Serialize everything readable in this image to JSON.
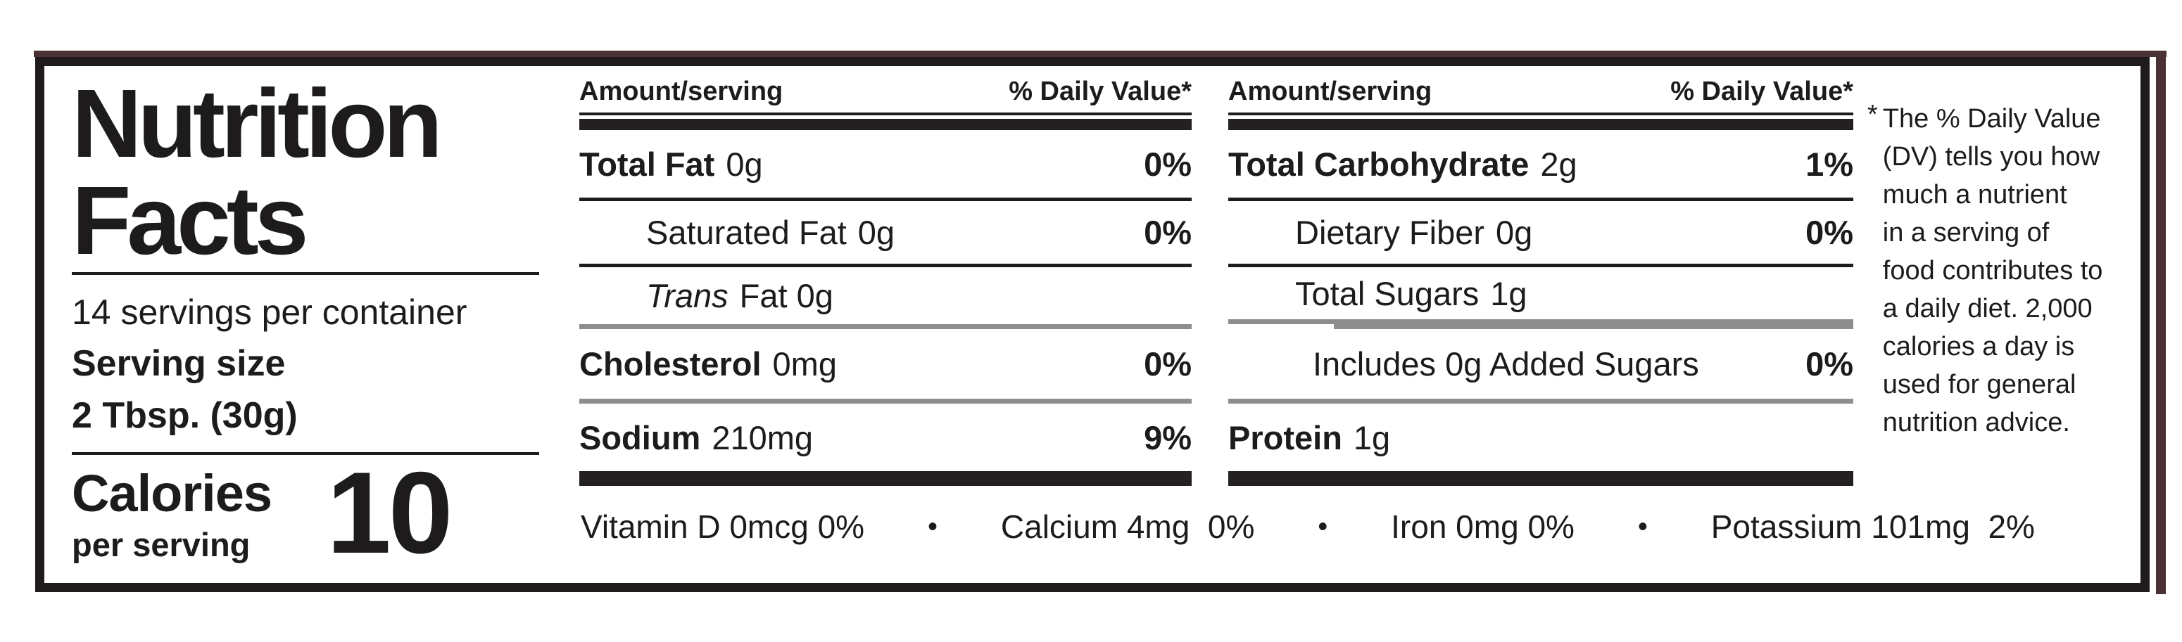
{
  "label": {
    "title": {
      "line1": "Nutrition",
      "line2": "Facts"
    },
    "servings_per_container": "14 servings per container",
    "serving_size": {
      "label": "Serving size",
      "value": "2 Tbsp. (30g)"
    },
    "calories": {
      "label": "Calories",
      "sublabel": "per serving",
      "value": "10"
    },
    "columns": [
      {
        "header": {
          "amount": "Amount/serving",
          "daily_value": "% Daily Value*"
        },
        "rows": [
          {
            "name": "Total Fat",
            "amount": "0g",
            "dv": "0%"
          },
          {
            "name": "Saturated Fat",
            "amount": "0g",
            "dv": "0%"
          },
          {
            "name_italic": "Trans",
            "amount": "Fat 0g",
            "dv": ""
          },
          {
            "name": "Cholesterol",
            "amount": "0mg",
            "dv": "0%"
          },
          {
            "name": "Sodium",
            "amount": "210mg",
            "dv": "9%"
          }
        ]
      },
      {
        "header": {
          "amount": "Amount/serving",
          "daily_value": "% Daily Value*"
        },
        "rows": [
          {
            "name": "Total Carbohydrate",
            "amount": "2g",
            "dv": "1%"
          },
          {
            "name": "Dietary Fiber",
            "amount": "0g",
            "dv": "0%"
          },
          {
            "name": "Total Sugars",
            "amount": "1g",
            "dv": ""
          },
          {
            "name": "Includes 0g Added Sugars",
            "amount": "",
            "dv": "0%"
          },
          {
            "name": "Protein",
            "amount": "1g",
            "dv": ""
          }
        ]
      }
    ],
    "micronutrients": {
      "separator": "•",
      "items": [
        "Vitamin D 0mcg 0%",
        "Calcium 4mg  0%",
        "Iron 0mg 0%",
        "Potassium 101mg  2%"
      ]
    },
    "footnote": {
      "marker": "*",
      "lines": [
        "The % Daily Value",
        "(DV) tells you how",
        "much a nutrient",
        "in a serving of",
        "food contributes to",
        "a daily diet. 2,000",
        "calories a day is",
        "used for general",
        "nutrition advice."
      ]
    },
    "colors": {
      "text": "#1d1b1c",
      "section_bar": "#242021",
      "gray_rule": "#8d8d8d",
      "packaging_edge": "#4a3136",
      "background": "#ffffff"
    }
  }
}
